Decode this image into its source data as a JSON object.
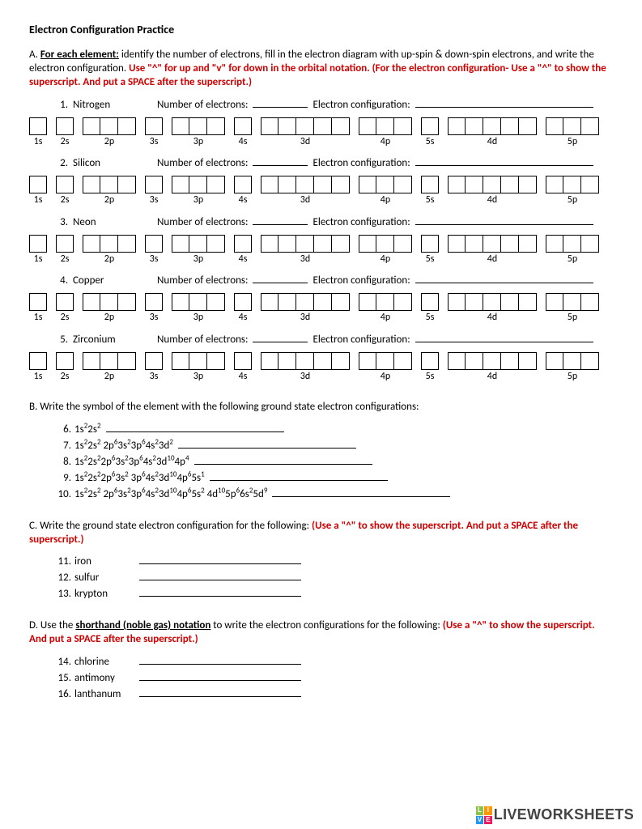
{
  "title": "Electron Configuration Practice",
  "sectionA": {
    "label": "A.",
    "boldLead": "For each element:",
    "text": " identify the number of electrons, fill in the electron diagram with up-spin & down-spin electrons, and write the electron configuration.  ",
    "redText": "Use \"^\" for up and \"v\" for down in the orbital notation. (For the electron configuration- Use a \"^\" to show the superscript. And put a SPACE after the superscript.)"
  },
  "orbitals": [
    {
      "label": "1s",
      "count": 1
    },
    {
      "label": "2s",
      "count": 1
    },
    {
      "label": "2p",
      "count": 3
    },
    {
      "label": "3s",
      "count": 1
    },
    {
      "label": "3p",
      "count": 3
    },
    {
      "label": "4s",
      "count": 1
    },
    {
      "label": "3d",
      "count": 5
    },
    {
      "label": "4p",
      "count": 3
    },
    {
      "label": "5s",
      "count": 1
    },
    {
      "label": "4d",
      "count": 5
    },
    {
      "label": "5p",
      "count": 3
    }
  ],
  "elements": [
    {
      "num": "1.",
      "name": "Nitrogen"
    },
    {
      "num": "2.",
      "name": "Silicon"
    },
    {
      "num": "3.",
      "name": "Neon"
    },
    {
      "num": "4.",
      "name": "Copper"
    },
    {
      "num": "5.",
      "name": "Zirconium"
    }
  ],
  "labels": {
    "numElectrons": "Number of electrons:",
    "electronConfig": "Electron configuration:"
  },
  "sectionB": {
    "header": "B. Write the symbol of the element with the following ground state electron configurations:",
    "items": [
      {
        "n": "6.",
        "cfg": "1s²2s²"
      },
      {
        "n": "7.",
        "cfg": "1s²2s² 2p⁶3s²3p⁶4s²3d²"
      },
      {
        "n": "8.",
        "cfg": "1s²2s²2p⁶3s²3p⁶4s²3d¹⁰4p⁴"
      },
      {
        "n": "9.",
        "cfg": "1s²2s²2p⁶3s² 3p⁶4s²3d¹⁰4p⁶5s¹"
      },
      {
        "n": "10.",
        "cfg": "1s²2s² 2p⁶3s²3p⁶4s²3d¹⁰4p⁶5s² 4d¹⁰5p⁶6s²5d⁹"
      }
    ]
  },
  "sectionC": {
    "header": "C. Write the ground state electron configuration for the following: ",
    "red": "(Use a \"^\" to show the superscript. And put a SPACE after the superscript.)",
    "items": [
      {
        "n": "11.",
        "name": "iron"
      },
      {
        "n": "12.",
        "name": "sulfur"
      },
      {
        "n": "13.",
        "name": "krypton"
      }
    ]
  },
  "sectionD": {
    "prefix": "D. Use the ",
    "bold": "shorthand (noble gas) notation",
    "suffix": " to write the electron configurations for the following: ",
    "red": "(Use a \"^\" to show the superscript. And put a SPACE after the superscript.)",
    "items": [
      {
        "n": "14.",
        "name": "chlorine"
      },
      {
        "n": "15.",
        "name": "antimony"
      },
      {
        "n": "16.",
        "name": "lanthanum"
      }
    ]
  },
  "watermark": {
    "text": "LIVEWORKSHEETS",
    "logoColors": [
      "#8bc34a",
      "#ff9800",
      "#2196f3",
      "#e91e63"
    ],
    "logoLetters": [
      "L",
      "I",
      "V",
      "E"
    ]
  }
}
